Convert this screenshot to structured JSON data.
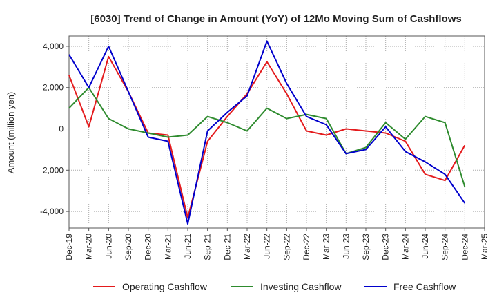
{
  "chart_data": {
    "type": "line",
    "title": "[6030]  Trend of Change in Amount (YoY) of 12Mo Moving Sum of Cashflows",
    "xlabel": "",
    "ylabel": "Amount (million yen)",
    "ylim": [
      -4800,
      4500
    ],
    "yticks": [
      -4000,
      -2000,
      0,
      2000,
      4000
    ],
    "ytick_labels": [
      "-4,000",
      "-2,000",
      "0",
      "2,000",
      "4,000"
    ],
    "categories": [
      "Dec-19",
      "Mar-20",
      "Jun-20",
      "Sep-20",
      "Dec-20",
      "Mar-21",
      "Jun-21",
      "Sep-21",
      "Dec-21",
      "Mar-22",
      "Jun-22",
      "Sep-22",
      "Dec-22",
      "Mar-23",
      "Jun-23",
      "Sep-23",
      "Dec-23",
      "Mar-24",
      "Jun-24",
      "Sep-24",
      "Dec-24",
      "Mar-25"
    ],
    "grid": true,
    "legend_position": "bottom",
    "series": [
      {
        "name": "Operating Cashflow",
        "color": "#e41a1c",
        "values": [
          2600,
          100,
          3500,
          1800,
          -200,
          -300,
          -4300,
          -600,
          600,
          1700,
          3250,
          1700,
          -100,
          -300,
          0,
          -100,
          -200,
          -600,
          -2200,
          -2500,
          -800,
          null
        ]
      },
      {
        "name": "Investing Cashflow",
        "color": "#2e8b2e",
        "values": [
          1000,
          2000,
          500,
          0,
          -200,
          -400,
          -300,
          600,
          300,
          -100,
          1000,
          500,
          700,
          500,
          -1200,
          -900,
          300,
          -500,
          600,
          300,
          -2800,
          null
        ]
      },
      {
        "name": "Free Cashflow",
        "color": "#0000cc",
        "values": [
          3600,
          2000,
          4000,
          1800,
          -400,
          -600,
          -4600,
          -100,
          800,
          1600,
          4250,
          2200,
          600,
          200,
          -1200,
          -1000,
          100,
          -1100,
          -1600,
          -2200,
          -3600,
          null
        ]
      }
    ]
  }
}
